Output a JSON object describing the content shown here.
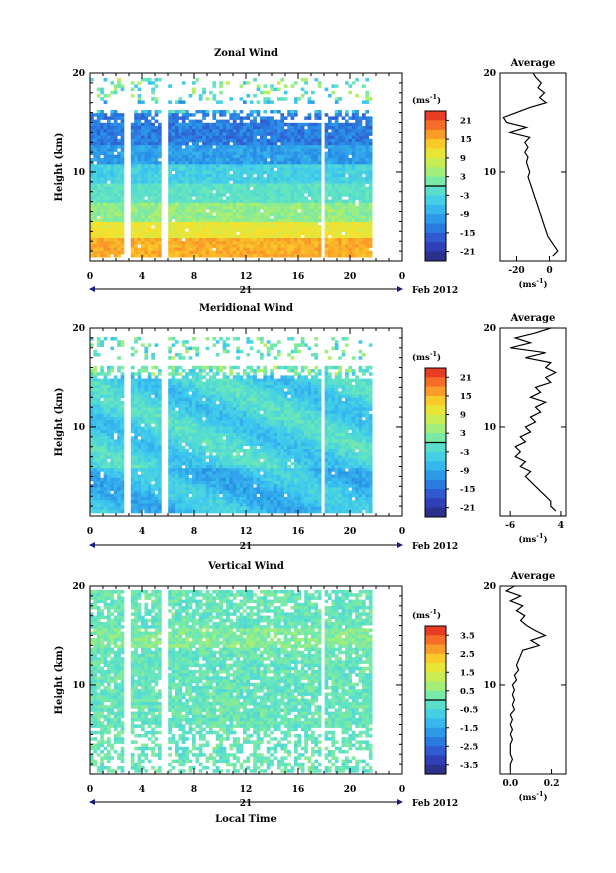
{
  "chart_data": [
    {
      "type": "heatmap",
      "id": "zonal",
      "title": "Zonal Wind",
      "ylabel": "Height (km)",
      "xlim": [
        0,
        24
      ],
      "ylim": [
        1,
        20
      ],
      "x_ticks": [
        "0",
        "4",
        "8",
        "12",
        "16",
        "20",
        "0"
      ],
      "y_ticks": [
        "10",
        "20"
      ],
      "date_labels": {
        "day": "21",
        "month": "Feb 2012"
      },
      "colorbar": {
        "unit": "(ms",
        "unit_sup": "-1",
        "unit_close": ")",
        "ticks": [
          "21",
          "15",
          "9",
          "3",
          "-3",
          "-9",
          "-15",
          "-21"
        ],
        "range": [
          -24,
          24
        ]
      },
      "data_gaps_hours": [
        [
          2.6,
          3.0
        ],
        [
          5.3,
          5.8
        ],
        [
          17.7,
          18.0
        ]
      ],
      "profile": {
        "title": "Average",
        "xlabel": "(ms",
        "xlabel_sup": "-1",
        "xlabel_close": ")",
        "x_ticks": [
          "-20",
          "0"
        ],
        "x_tick_values": [
          -20,
          0
        ],
        "xlim": [
          -30,
          10
        ],
        "y_ticks": [
          "10",
          "20"
        ],
        "ylim": [
          1,
          20
        ],
        "height_km": [
          20,
          19.5,
          19,
          18.5,
          18,
          17.5,
          17,
          16.5,
          16,
          15.5,
          15,
          14.5,
          14,
          13.5,
          13,
          12.5,
          12,
          11.5,
          11,
          10.5,
          10,
          9.5,
          9,
          8.5,
          8,
          7.5,
          7,
          6.5,
          6,
          5.5,
          5,
          4.5,
          4,
          3.5,
          3,
          2.5,
          2,
          1.5
        ],
        "value_ms": [
          -10,
          -8,
          -5,
          -7,
          -3,
          -6,
          -2,
          -12,
          -20,
          -28,
          -26,
          -14,
          -24,
          -12,
          -15,
          -13,
          -15,
          -13,
          -14,
          -13,
          -12,
          -13,
          -12,
          -11,
          -10,
          -9,
          -8,
          -7,
          -6,
          -5,
          -4,
          -3,
          -2,
          -1,
          1,
          3,
          5,
          2
        ]
      }
    },
    {
      "type": "heatmap",
      "id": "meridional",
      "title": "Meridional Wind",
      "ylabel": "Height (km)",
      "xlim": [
        0,
        24
      ],
      "ylim": [
        1,
        20
      ],
      "x_ticks": [
        "0",
        "4",
        "8",
        "12",
        "16",
        "20",
        "0"
      ],
      "y_ticks": [
        "10",
        "20"
      ],
      "date_labels": {
        "day": "21",
        "month": "Feb 2012"
      },
      "colorbar": {
        "unit": "(ms",
        "unit_sup": "-1",
        "unit_close": ")",
        "ticks": [
          "21",
          "15",
          "9",
          "3",
          "-3",
          "-9",
          "-15",
          "-21"
        ],
        "range": [
          -24,
          24
        ]
      },
      "data_gaps_hours": [
        [
          2.6,
          3.0
        ],
        [
          5.3,
          5.8
        ],
        [
          17.7,
          18.0
        ]
      ],
      "profile": {
        "title": "Average",
        "xlabel": "(ms",
        "xlabel_sup": "-1",
        "xlabel_close": ")",
        "x_ticks": [
          "-6",
          "4"
        ],
        "x_tick_values": [
          -6,
          4
        ],
        "xlim": [
          -8,
          5
        ],
        "y_ticks": [
          "10",
          "20"
        ],
        "ylim": [
          1,
          20
        ],
        "height_km": [
          20,
          19.5,
          19,
          18.5,
          18,
          17.5,
          17,
          16.5,
          16,
          15.5,
          15,
          14.5,
          14,
          13.5,
          13,
          12.5,
          12,
          11.5,
          11,
          10.5,
          10,
          9.5,
          9,
          8.5,
          8,
          7.5,
          7,
          6.5,
          6,
          5.5,
          5,
          4.5,
          4,
          3.5,
          3,
          2.5,
          2,
          1.5
        ],
        "value_ms": [
          2,
          -1,
          -5,
          -2,
          -6,
          1,
          -3,
          2,
          1,
          3,
          1,
          2,
          -1,
          0,
          -2,
          1,
          -1,
          0,
          -2,
          -1,
          -3,
          -2,
          -4,
          -3,
          -5,
          -4,
          -5,
          -3,
          -4,
          -2,
          -3,
          -2,
          -1,
          0,
          1,
          2,
          2,
          3
        ]
      }
    },
    {
      "type": "heatmap",
      "id": "vertical",
      "title": "Vertical Wind",
      "ylabel": "Height (km)",
      "xlabel": "Local Time",
      "xlim": [
        0,
        24
      ],
      "ylim": [
        1,
        20
      ],
      "x_ticks": [
        "0",
        "4",
        "8",
        "12",
        "16",
        "20",
        "0"
      ],
      "y_ticks": [
        "10",
        "20"
      ],
      "date_labels": {
        "day": "21",
        "month": "Feb 2012"
      },
      "colorbar": {
        "unit": "(ms",
        "unit_sup": "-1",
        "unit_close": ")",
        "ticks": [
          "3.5",
          "2.5",
          "1.5",
          "0.5",
          "-0.5",
          "-1.5",
          "-2.5",
          "-3.5"
        ],
        "range": [
          -4,
          4
        ]
      },
      "data_gaps_hours": [
        [
          2.6,
          3.0
        ],
        [
          5.3,
          5.8
        ],
        [
          17.7,
          18.0
        ]
      ],
      "profile": {
        "title": "Average",
        "xlabel": "(ms",
        "xlabel_sup": "-1",
        "xlabel_close": ")",
        "x_ticks": [
          "0.0",
          "0.2"
        ],
        "x_tick_values": [
          0.0,
          0.2
        ],
        "xlim": [
          -0.05,
          0.27
        ],
        "y_ticks": [
          "10",
          "20"
        ],
        "ylim": [
          1,
          20
        ],
        "height_km": [
          20,
          19.5,
          19,
          18.5,
          18,
          17.5,
          17,
          16.5,
          16,
          15.5,
          15,
          14.5,
          14,
          13.5,
          13,
          12.5,
          12,
          11.5,
          11,
          10.5,
          10,
          9.5,
          9,
          8.5,
          8,
          7.5,
          7,
          6.5,
          6,
          5.5,
          5,
          4.5,
          4,
          3.5,
          3,
          2.5,
          2,
          1.5
        ],
        "value_ms": [
          0.02,
          -0.02,
          0.05,
          0.0,
          0.06,
          0.03,
          0.07,
          0.05,
          0.08,
          0.12,
          0.17,
          0.1,
          0.14,
          0.06,
          0.05,
          0.04,
          0.03,
          0.04,
          0.02,
          0.03,
          0.01,
          0.02,
          0.01,
          0.02,
          0.01,
          0.02,
          0.0,
          0.01,
          0.0,
          0.01,
          0.0,
          0.01,
          0.0,
          0.0,
          0.0,
          0.01,
          0.0,
          0.0
        ]
      }
    }
  ]
}
